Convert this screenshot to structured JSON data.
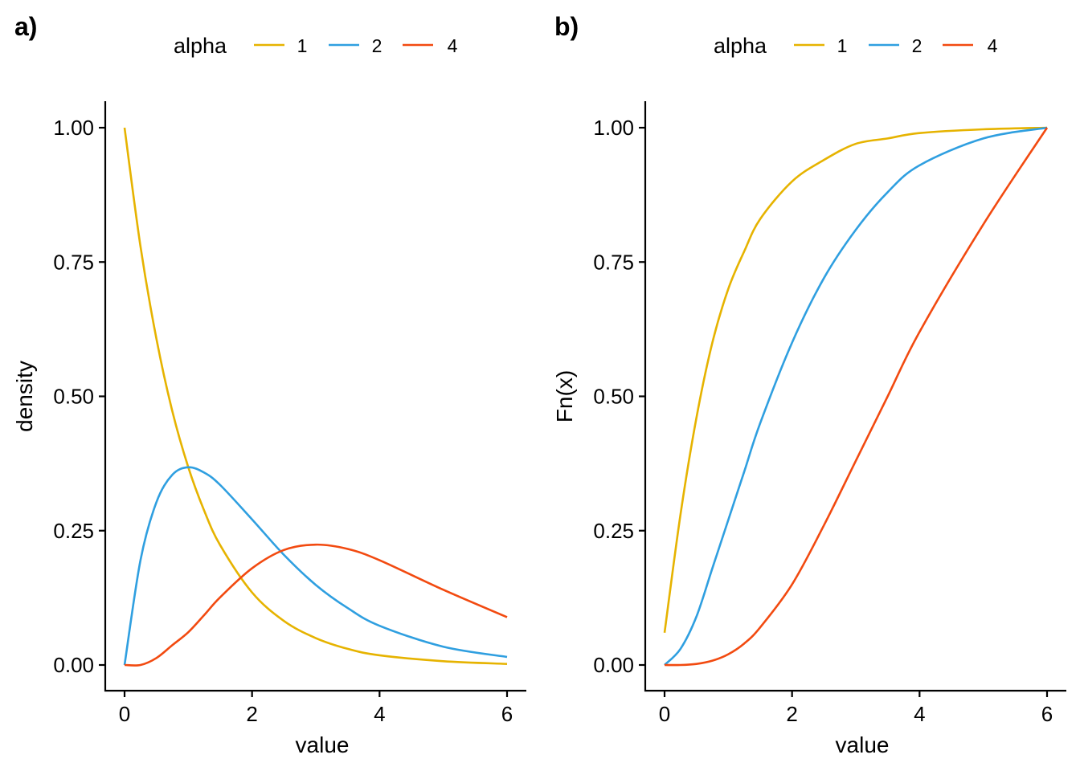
{
  "legend_title": "alpha",
  "colors": {
    "1": "#E6B300",
    "2": "#2F9FE0",
    "4": "#F24A10"
  },
  "chart_data": [
    {
      "panel": "a)",
      "type": "line",
      "xlabel": "value",
      "ylabel": "density",
      "xlim": [
        0,
        6
      ],
      "ylim": [
        0,
        1
      ],
      "x_ticks": [
        "0",
        "2",
        "4",
        "6"
      ],
      "y_ticks": [
        "0.00",
        "0.25",
        "0.50",
        "0.75",
        "1.00"
      ],
      "x": [
        0,
        0.25,
        0.5,
        0.75,
        1,
        1.25,
        1.5,
        2,
        2.5,
        3,
        3.5,
        4,
        5,
        6
      ],
      "series": [
        {
          "name": "1",
          "color": "#E6B300",
          "values": [
            1.0,
            0.779,
            0.607,
            0.472,
            0.368,
            0.287,
            0.223,
            0.135,
            0.082,
            0.05,
            0.03,
            0.018,
            0.007,
            0.002
          ]
        },
        {
          "name": "2",
          "color": "#2F9FE0",
          "values": [
            0.0,
            0.195,
            0.303,
            0.354,
            0.368,
            0.358,
            0.335,
            0.271,
            0.205,
            0.149,
            0.106,
            0.073,
            0.034,
            0.015
          ]
        },
        {
          "name": "4",
          "color": "#F24A10",
          "values": [
            0.0,
            0.0,
            0.013,
            0.037,
            0.061,
            0.093,
            0.126,
            0.18,
            0.214,
            0.224,
            0.216,
            0.195,
            0.14,
            0.089
          ]
        }
      ]
    },
    {
      "panel": "b)",
      "type": "line",
      "xlabel": "value",
      "ylabel": "Fn(x)",
      "xlim": [
        0,
        6
      ],
      "ylim": [
        0,
        1
      ],
      "x_ticks": [
        "0",
        "2",
        "4",
        "6"
      ],
      "y_ticks": [
        "0.00",
        "0.25",
        "0.50",
        "0.75",
        "1.00"
      ],
      "x": [
        0,
        0.25,
        0.5,
        0.75,
        1,
        1.25,
        1.5,
        2,
        2.5,
        3,
        3.5,
        4,
        5,
        6
      ],
      "series": [
        {
          "name": "1",
          "color": "#E6B300",
          "values": [
            0.06,
            0.28,
            0.46,
            0.6,
            0.7,
            0.77,
            0.83,
            0.9,
            0.94,
            0.97,
            0.98,
            0.99,
            0.997,
            1.0
          ]
        },
        {
          "name": "2",
          "color": "#2F9FE0",
          "values": [
            0.0,
            0.03,
            0.09,
            0.18,
            0.27,
            0.36,
            0.45,
            0.6,
            0.72,
            0.81,
            0.88,
            0.93,
            0.98,
            1.0
          ]
        },
        {
          "name": "4",
          "color": "#F24A10",
          "values": [
            0.0,
            0.0,
            0.002,
            0.008,
            0.02,
            0.04,
            0.07,
            0.15,
            0.26,
            0.38,
            0.5,
            0.62,
            0.82,
            1.0
          ]
        }
      ]
    }
  ]
}
